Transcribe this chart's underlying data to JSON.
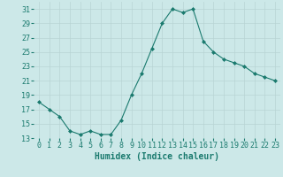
{
  "x": [
    0,
    1,
    2,
    3,
    4,
    5,
    6,
    7,
    8,
    9,
    10,
    11,
    12,
    13,
    14,
    15,
    16,
    17,
    18,
    19,
    20,
    21,
    22,
    23
  ],
  "y": [
    18,
    17,
    16,
    14,
    13.5,
    14,
    13.5,
    13.5,
    15.5,
    19,
    22,
    25.5,
    29,
    31,
    30.5,
    31,
    26.5,
    25,
    24,
    23.5,
    23,
    22,
    21.5,
    21
  ],
  "line_color": "#1a7a6e",
  "marker": "D",
  "marker_size": 2,
  "xlabel": "Humidex (Indice chaleur)",
  "xlabel_fontsize": 7,
  "xlabel_fontfamily": "monospace",
  "xlabel_color": "#1a7a6e",
  "ylim": [
    13,
    32
  ],
  "xlim": [
    -0.5,
    23.5
  ],
  "yticks": [
    13,
    15,
    17,
    19,
    21,
    23,
    25,
    27,
    29,
    31
  ],
  "xticks": [
    0,
    1,
    2,
    3,
    4,
    5,
    6,
    7,
    8,
    9,
    10,
    11,
    12,
    13,
    14,
    15,
    16,
    17,
    18,
    19,
    20,
    21,
    22,
    23
  ],
  "background_color": "#cce8e8",
  "grid_color": "#b8d4d4",
  "tick_color": "#1a7a6e",
  "tick_fontsize": 6,
  "tick_fontfamily": "monospace"
}
